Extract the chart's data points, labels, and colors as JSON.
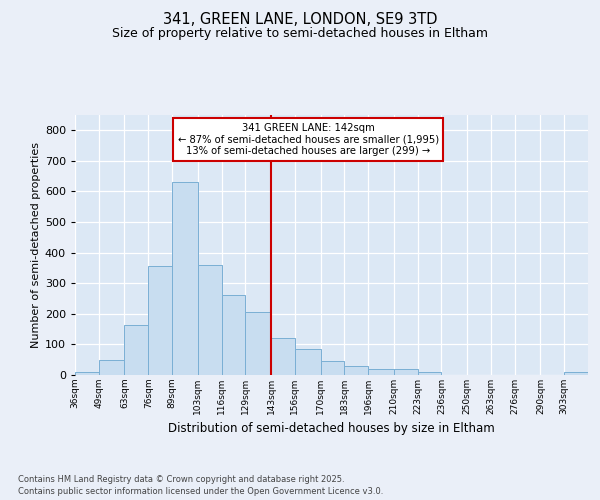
{
  "title1": "341, GREEN LANE, LONDON, SE9 3TD",
  "title2": "Size of property relative to semi-detached houses in Eltham",
  "xlabel": "Distribution of semi-detached houses by size in Eltham",
  "ylabel": "Number of semi-detached properties",
  "bin_labels": [
    "36sqm",
    "49sqm",
    "63sqm",
    "76sqm",
    "89sqm",
    "103sqm",
    "116sqm",
    "129sqm",
    "143sqm",
    "156sqm",
    "170sqm",
    "183sqm",
    "196sqm",
    "210sqm",
    "223sqm",
    "236sqm",
    "250sqm",
    "263sqm",
    "276sqm",
    "290sqm",
    "303sqm"
  ],
  "bar_heights": [
    10,
    50,
    165,
    355,
    630,
    360,
    260,
    205,
    120,
    85,
    45,
    30,
    20,
    20,
    10,
    0,
    0,
    0,
    0,
    0,
    10
  ],
  "bar_color": "#c8ddf0",
  "bar_edge_color": "#7aafd4",
  "vline_x": 143,
  "property_line_label": "341 GREEN LANE: 142sqm",
  "annotation_line1": "← 87% of semi-detached houses are smaller (1,995)",
  "annotation_line2": "13% of semi-detached houses are larger (299) →",
  "annotation_box_color": "#ffffff",
  "annotation_box_edge": "#cc0000",
  "vline_color": "#cc0000",
  "ylim_max": 850,
  "yticks": [
    0,
    100,
    200,
    300,
    400,
    500,
    600,
    700,
    800
  ],
  "bg_axes": "#dce8f5",
  "bg_fig": "#eaeff8",
  "footnote1": "Contains HM Land Registry data © Crown copyright and database right 2025.",
  "footnote2": "Contains public sector information licensed under the Open Government Licence v3.0.",
  "bin_edges": [
    36,
    49,
    63,
    76,
    89,
    103,
    116,
    129,
    143,
    156,
    170,
    183,
    196,
    210,
    223,
    236,
    250,
    263,
    276,
    290,
    303,
    316
  ]
}
